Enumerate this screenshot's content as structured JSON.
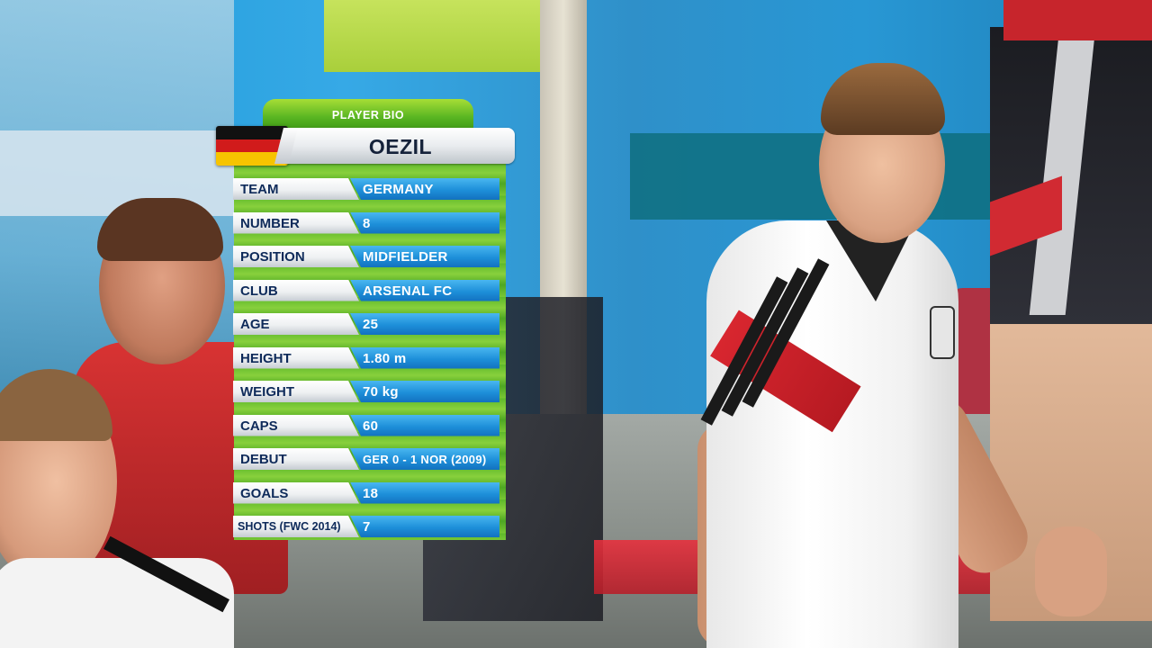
{
  "overlay": {
    "header_tab": "PLAYER BIO",
    "player_name": "OEZIL",
    "flag_icon": "germany-flag-icon",
    "flag_colors": [
      "#111111",
      "#d11b1b",
      "#f7c400"
    ],
    "rows": [
      {
        "label": "TEAM",
        "value": "GERMANY"
      },
      {
        "label": "NUMBER",
        "value": "8"
      },
      {
        "label": "POSITION",
        "value": "MIDFIELDER"
      },
      {
        "label": "CLUB",
        "value": "ARSENAL FC"
      },
      {
        "label": "AGE",
        "value": "25"
      },
      {
        "label": "HEIGHT",
        "value": "1.80 m"
      },
      {
        "label": "WEIGHT",
        "value": "70 kg"
      },
      {
        "label": "CAPS",
        "value": "60"
      },
      {
        "label": "DEBUT",
        "value": "GER 0 - 1 NOR (2009)"
      },
      {
        "label": "GOALS",
        "value": "18"
      },
      {
        "label": "SHOTS (FWC 2014)",
        "value": "7"
      }
    ]
  },
  "colors": {
    "label_text": "#0e2a5a",
    "value_bar": "#1d8fd9",
    "panel_green": "#5db82b"
  }
}
